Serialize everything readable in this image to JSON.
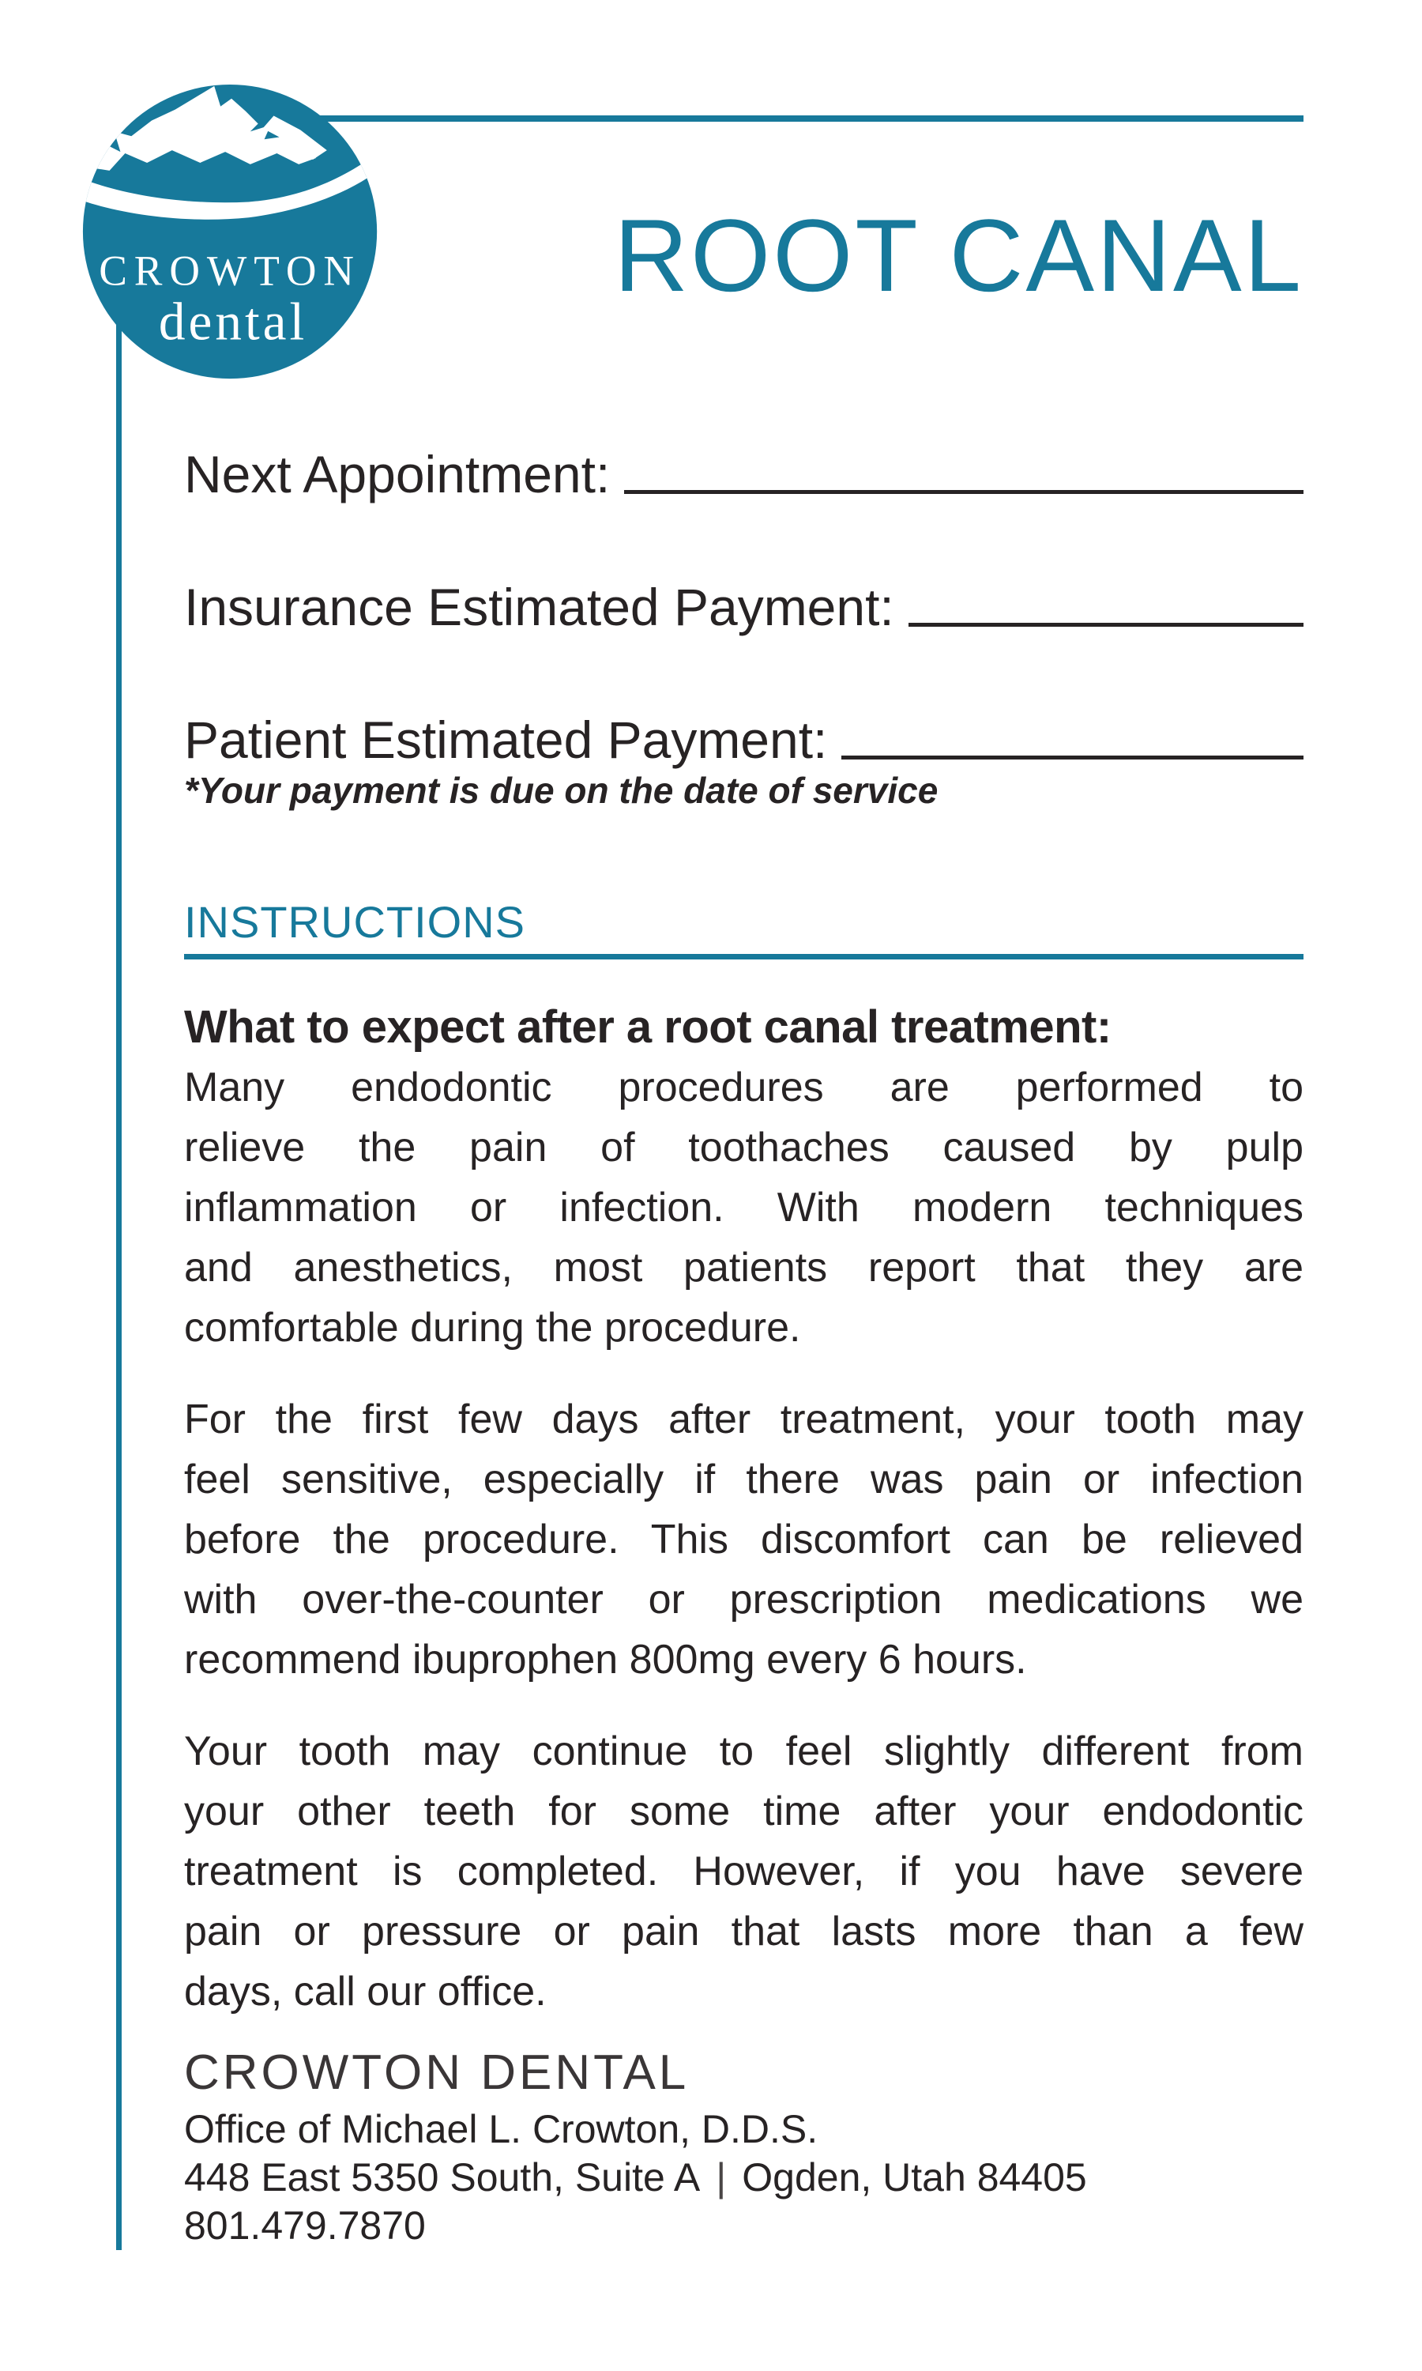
{
  "accent_color": "#17799b",
  "ink_color": "#272324",
  "logo": {
    "name_caps": "CROWTON",
    "name_script": "dental"
  },
  "title": "ROOT CANAL",
  "form": {
    "rows": [
      {
        "label": "Next Appointment:"
      },
      {
        "label": "Insurance Estimated Payment:"
      },
      {
        "label": "Patient Estimated Payment:"
      }
    ],
    "note": "*Your payment is due on the date of service"
  },
  "instructions": {
    "heading": "INSTRUCTIONS",
    "subheading": "What to expect after a root canal treatment:",
    "paragraphs": [
      [
        "Many endodontic procedures are performed to",
        "relieve the pain of toothaches caused by pulp",
        "inflammation or infection. With modern techniques",
        "and anesthetics, most patients report that they are",
        "comfortable during the procedure."
      ],
      [
        "For the first few days after treatment, your tooth may",
        "feel sensitive, especially if there was pain or infection",
        "before the procedure. This discomfort can be relieved",
        "with over-the-counter or prescription medications we",
        "recommend ibuprophen 800mg every 6 hours."
      ],
      [
        "Your tooth may continue to feel slightly different from",
        "your other teeth for some time after your endodontic",
        "treatment is completed. However, if you have severe",
        "pain or pressure or pain that lasts more than a few",
        "days, call our office."
      ]
    ]
  },
  "footer": {
    "practice_name": "CROWTON DENTAL",
    "office_line": "Office of Michael L. Crowton, D.D.S.",
    "address_street": "448 East 5350 South, Suite A",
    "address_separator": "|",
    "address_city": "Ogden, Utah 84405",
    "phone": "801.479.7870"
  }
}
